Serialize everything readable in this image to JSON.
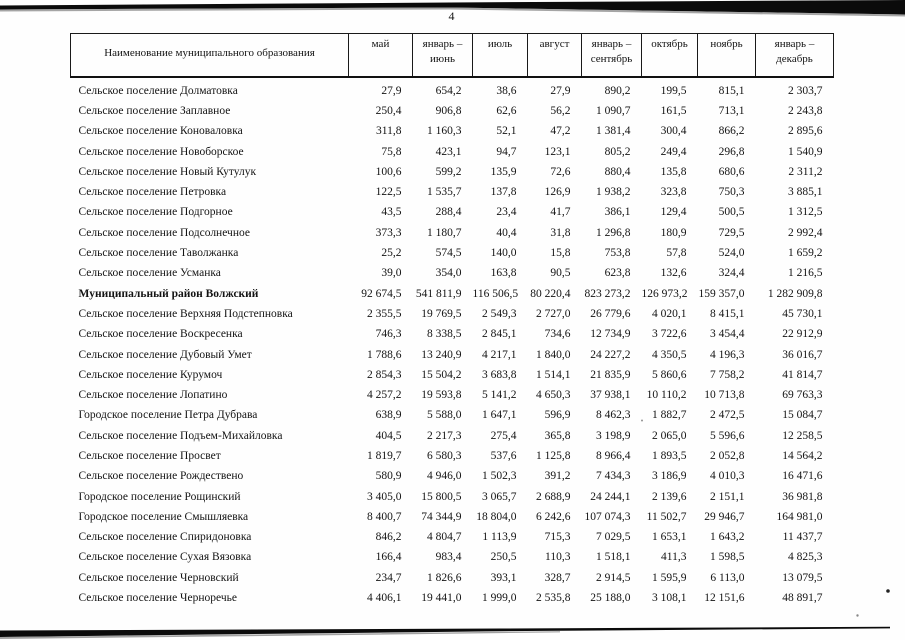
{
  "page": {
    "number": "4"
  },
  "table": {
    "name_header": "Наименование муниципального образования",
    "columns": [
      "май",
      "январь – июнь",
      "июль",
      "август",
      "январь – сентябрь",
      "октябрь",
      "ноябрь",
      "январь – декабрь"
    ],
    "rows": [
      {
        "name": "Сельское поселение Долматовка",
        "bold": false,
        "values": [
          "27,9",
          "654,2",
          "38,6",
          "27,9",
          "890,2",
          "199,5",
          "815,1",
          "2 303,7"
        ]
      },
      {
        "name": "Сельское поселение Заплавное",
        "bold": false,
        "values": [
          "250,4",
          "906,8",
          "62,6",
          "56,2",
          "1 090,7",
          "161,5",
          "713,1",
          "2 243,8"
        ]
      },
      {
        "name": "Сельское поселение Коноваловка",
        "bold": false,
        "values": [
          "311,8",
          "1 160,3",
          "52,1",
          "47,2",
          "1 381,4",
          "300,4",
          "866,2",
          "2 895,6"
        ]
      },
      {
        "name": "Сельское поселение Новоборское",
        "bold": false,
        "values": [
          "75,8",
          "423,1",
          "94,7",
          "123,1",
          "805,2",
          "249,4",
          "296,8",
          "1 540,9"
        ]
      },
      {
        "name": "Сельское поселение Новый Кутулук",
        "bold": false,
        "values": [
          "100,6",
          "599,2",
          "135,9",
          "72,6",
          "880,4",
          "135,8",
          "680,6",
          "2 311,2"
        ]
      },
      {
        "name": "Сельское поселение Петровка",
        "bold": false,
        "values": [
          "122,5",
          "1 535,7",
          "137,8",
          "126,9",
          "1 938,2",
          "323,8",
          "750,3",
          "3 885,1"
        ]
      },
      {
        "name": "Сельское поселение Подгорное",
        "bold": false,
        "values": [
          "43,5",
          "288,4",
          "23,4",
          "41,7",
          "386,1",
          "129,4",
          "500,5",
          "1 312,5"
        ]
      },
      {
        "name": "Сельское поселение Подсолнечное",
        "bold": false,
        "values": [
          "373,3",
          "1 180,7",
          "40,4",
          "31,8",
          "1 296,8",
          "180,9",
          "729,5",
          "2 992,4"
        ]
      },
      {
        "name": "Сельское поселение Таволжанка",
        "bold": false,
        "values": [
          "25,2",
          "574,5",
          "140,0",
          "15,8",
          "753,8",
          "57,8",
          "524,0",
          "1 659,2"
        ]
      },
      {
        "name": "Сельское поселение Усманка",
        "bold": false,
        "values": [
          "39,0",
          "354,0",
          "163,8",
          "90,5",
          "623,8",
          "132,6",
          "324,4",
          "1 216,5"
        ]
      },
      {
        "name": "Муниципальный район Волжский",
        "bold": true,
        "values": [
          "92 674,5",
          "541 811,9",
          "116 506,5",
          "80 220,4",
          "823 273,2",
          "126 973,2",
          "159 357,0",
          "1 282 909,8"
        ]
      },
      {
        "name": "Сельское поселение Верхняя Подстепновка",
        "bold": false,
        "values": [
          "2 355,5",
          "19 769,5",
          "2 549,3",
          "2 727,0",
          "26 779,6",
          "4 020,1",
          "8 415,1",
          "45 730,1"
        ]
      },
      {
        "name": "Сельское поселение Воскресенка",
        "bold": false,
        "values": [
          "746,3",
          "8 338,5",
          "2 845,1",
          "734,6",
          "12 734,9",
          "3 722,6",
          "3 454,4",
          "22 912,9"
        ]
      },
      {
        "name": "Сельское поселение Дубовый Умет",
        "bold": false,
        "values": [
          "1 788,6",
          "13 240,9",
          "4 217,1",
          "1 840,0",
          "24 227,2",
          "4 350,5",
          "4 196,3",
          "36 016,7"
        ]
      },
      {
        "name": "Сельское поселение Курумоч",
        "bold": false,
        "values": [
          "2 854,3",
          "15 504,2",
          "3 683,8",
          "1 514,1",
          "21 835,9",
          "5 860,6",
          "7 758,2",
          "41 814,7"
        ]
      },
      {
        "name": "Сельское поселение Лопатино",
        "bold": false,
        "values": [
          "4 257,2",
          "19 593,8",
          "5 141,2",
          "4 650,3",
          "37 938,1",
          "10 110,2",
          "10 713,8",
          "69 763,3"
        ]
      },
      {
        "name": "Городское поселение Петра Дубрава",
        "bold": false,
        "values": [
          "638,9",
          "5 588,0",
          "1 647,1",
          "596,9",
          "8 462,3",
          "1 882,7",
          "2 472,5",
          "15 084,7"
        ]
      },
      {
        "name": "Сельское поселение Подъем-Михайловка",
        "bold": false,
        "values": [
          "404,5",
          "2 217,3",
          "275,4",
          "365,8",
          "3 198,9",
          "2 065,0",
          "5 596,6",
          "12 258,5"
        ]
      },
      {
        "name": "Сельское поселение Просвет",
        "bold": false,
        "values": [
          "1 819,7",
          "6 580,3",
          "537,6",
          "1 125,8",
          "8 966,4",
          "1 893,5",
          "2 052,8",
          "14 564,2"
        ]
      },
      {
        "name": "Сельское поселение Рождествено",
        "bold": false,
        "values": [
          "580,9",
          "4 946,0",
          "1 502,3",
          "391,2",
          "7 434,3",
          "3 186,9",
          "4 010,3",
          "16 471,6"
        ]
      },
      {
        "name": "Городское поселение Рощинский",
        "bold": false,
        "values": [
          "3 405,0",
          "15 800,5",
          "3 065,7",
          "2 688,9",
          "24 244,1",
          "2 139,6",
          "2 151,1",
          "36 981,8"
        ]
      },
      {
        "name": "Городское поселение Смышляевка",
        "bold": false,
        "values": [
          "8 400,7",
          "74 344,9",
          "18 804,0",
          "6 242,6",
          "107 074,3",
          "11 502,7",
          "29 946,7",
          "164 981,0"
        ]
      },
      {
        "name": "Сельское поселение Спиридоновка",
        "bold": false,
        "values": [
          "846,2",
          "4 804,7",
          "1 113,9",
          "715,3",
          "7 029,5",
          "1 653,1",
          "1 643,2",
          "11 437,7"
        ]
      },
      {
        "name": "Сельское поселение Сухая Вязовка",
        "bold": false,
        "values": [
          "166,4",
          "983,4",
          "250,5",
          "110,3",
          "1 518,1",
          "411,3",
          "1 598,5",
          "4 825,3"
        ]
      },
      {
        "name": "Сельское поселение Черновский",
        "bold": false,
        "values": [
          "234,7",
          "1 826,6",
          "393,1",
          "328,7",
          "2 914,5",
          "1 595,9",
          "6 113,0",
          "13 079,5"
        ]
      },
      {
        "name": "Сельское поселение Черноречье",
        "bold": false,
        "values": [
          "4 406,1",
          "19 441,0",
          "1 999,0",
          "2 535,8",
          "25 188,0",
          "3 108,1",
          "12 151,6",
          "48 891,7"
        ]
      }
    ]
  }
}
